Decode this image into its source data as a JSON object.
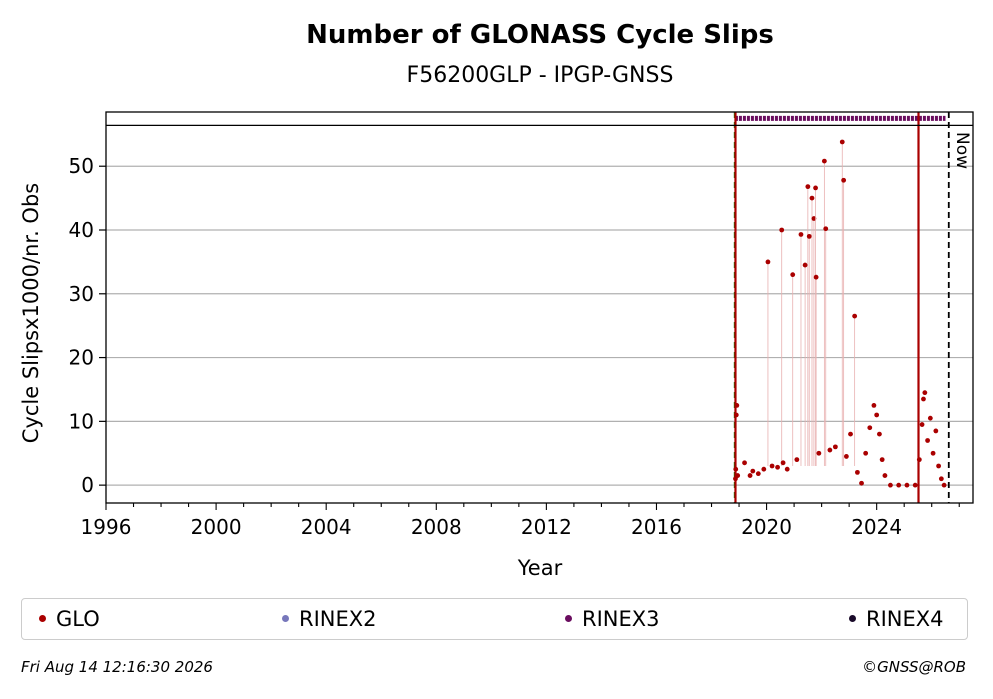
{
  "chart_data": {
    "type": "scatter",
    "title": "Number of GLONASS Cycle Slips",
    "subtitle": "F56200GLP - IPGP-GNSS",
    "xlabel": "Year",
    "ylabel": "Cycle Slipsx1000/nr. Obs",
    "xlim": [
      1996,
      2027.5
    ],
    "ylim": [
      -2.8,
      58.5
    ],
    "x_ticks": [
      1996,
      2000,
      2004,
      2008,
      2012,
      2016,
      2020,
      2024
    ],
    "y_ticks": [
      0,
      10,
      20,
      30,
      40,
      50
    ],
    "grid": "horizontal",
    "now_label": "Now",
    "now_year": 2026.62,
    "vertical_lines": [
      {
        "x": 2018.85,
        "color": "#008000",
        "style": "dashed"
      },
      {
        "x": 2018.87,
        "color": "#aa0000",
        "style": "solid"
      },
      {
        "x": 2025.52,
        "color": "#aa0000",
        "style": "solid"
      }
    ],
    "rinex3_band": {
      "y": 57.5,
      "from": 2018.85,
      "to": 2026.5,
      "color": "#6a0d5f"
    },
    "series": [
      {
        "name": "GLO",
        "color": "#aa0000",
        "points": [
          [
            2018.87,
            1.0
          ],
          [
            2018.88,
            2.5
          ],
          [
            2018.9,
            11.0
          ],
          [
            2018.92,
            12.5
          ],
          [
            2018.95,
            1.5
          ],
          [
            2019.2,
            3.5
          ],
          [
            2019.4,
            1.5
          ],
          [
            2019.5,
            2.2
          ],
          [
            2019.7,
            1.8
          ],
          [
            2019.9,
            2.5
          ],
          [
            2020.05,
            35.0
          ],
          [
            2020.2,
            3.0
          ],
          [
            2020.4,
            2.8
          ],
          [
            2020.55,
            40.0
          ],
          [
            2020.6,
            3.5
          ],
          [
            2020.75,
            2.5
          ],
          [
            2020.95,
            33.0
          ],
          [
            2021.1,
            4.0
          ],
          [
            2021.25,
            39.3
          ],
          [
            2021.4,
            34.5
          ],
          [
            2021.5,
            46.8
          ],
          [
            2021.55,
            39.0
          ],
          [
            2021.65,
            45.0
          ],
          [
            2021.72,
            41.8
          ],
          [
            2021.78,
            46.6
          ],
          [
            2021.8,
            32.6
          ],
          [
            2021.9,
            5.0
          ],
          [
            2022.1,
            50.8
          ],
          [
            2022.15,
            40.2
          ],
          [
            2022.3,
            5.5
          ],
          [
            2022.5,
            6.0
          ],
          [
            2022.75,
            53.8
          ],
          [
            2022.8,
            47.8
          ],
          [
            2022.9,
            4.5
          ],
          [
            2023.05,
            8.0
          ],
          [
            2023.2,
            26.5
          ],
          [
            2023.3,
            2.0
          ],
          [
            2023.45,
            0.3
          ],
          [
            2023.6,
            5.0
          ],
          [
            2023.75,
            9.0
          ],
          [
            2023.9,
            12.5
          ],
          [
            2024.0,
            11.0
          ],
          [
            2024.1,
            8.0
          ],
          [
            2024.2,
            4.0
          ],
          [
            2024.3,
            1.5
          ],
          [
            2024.5,
            0.0
          ],
          [
            2024.8,
            0.0
          ],
          [
            2025.1,
            0.0
          ],
          [
            2025.4,
            0.0
          ],
          [
            2025.55,
            4.0
          ],
          [
            2025.65,
            9.5
          ],
          [
            2025.7,
            13.5
          ],
          [
            2025.75,
            14.5
          ],
          [
            2025.85,
            7.0
          ],
          [
            2025.95,
            10.5
          ],
          [
            2026.05,
            5.0
          ],
          [
            2026.15,
            8.5
          ],
          [
            2026.25,
            3.0
          ],
          [
            2026.35,
            1.0
          ],
          [
            2026.45,
            0.0
          ]
        ]
      },
      {
        "name": "RINEX2",
        "color": "#7777bb",
        "points": []
      },
      {
        "name": "RINEX3",
        "color": "#6a0d5f",
        "points": []
      },
      {
        "name": "RINEX4",
        "color": "#1a0a2a",
        "points": []
      }
    ]
  },
  "legend": [
    {
      "label": "GLO",
      "color": "#aa0000"
    },
    {
      "label": "RINEX2",
      "color": "#7777bb"
    },
    {
      "label": "RINEX3",
      "color": "#6a0d5f"
    },
    {
      "label": "RINEX4",
      "color": "#1a0a2a"
    }
  ],
  "footer": {
    "timestamp": "Fri Aug 14 12:16:30 2026",
    "credit": "©GNSS@ROB"
  }
}
